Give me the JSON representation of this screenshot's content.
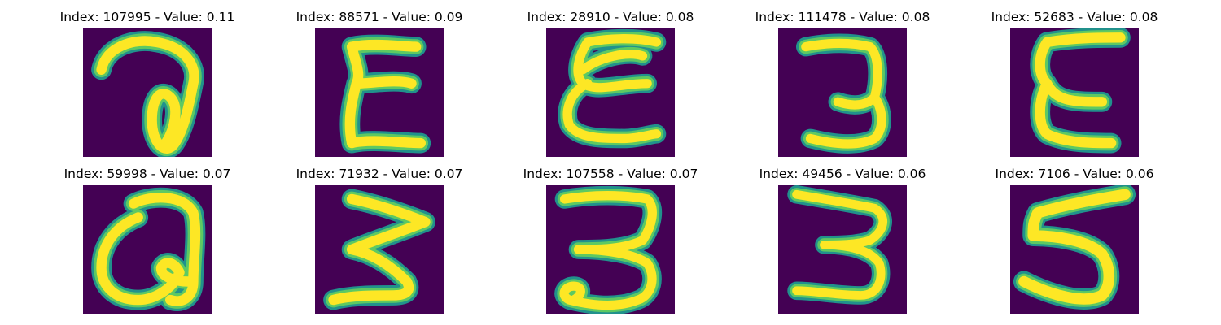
{
  "colors": {
    "background": "#440154",
    "stroke_core": "#fde725",
    "stroke_mid": "#5ec962",
    "stroke_edge": "#21918c"
  },
  "panels": [
    {
      "title": "Index: 107995 - Value: 0.11",
      "glyph": "a-loop"
    },
    {
      "title": "Index: 88571 - Value: 0.09",
      "glyph": "epsilon-sharp"
    },
    {
      "title": "Index: 28910 - Value: 0.08",
      "glyph": "epsilon-round"
    },
    {
      "title": "Index: 111478 - Value: 0.08",
      "glyph": "three-narrow"
    },
    {
      "title": "Index: 52683 - Value: 0.08",
      "glyph": "epsilon-e"
    },
    {
      "title": "Index: 59998 - Value: 0.07",
      "glyph": "a-heart"
    },
    {
      "title": "Index: 71932 - Value: 0.07",
      "glyph": "three-sharp"
    },
    {
      "title": "Index: 107558 - Value: 0.07",
      "glyph": "three-round"
    },
    {
      "title": "Index: 49456 - Value: 0.06",
      "glyph": "three-wide"
    },
    {
      "title": "Index: 7106 - Value: 0.06",
      "glyph": "five"
    }
  ]
}
